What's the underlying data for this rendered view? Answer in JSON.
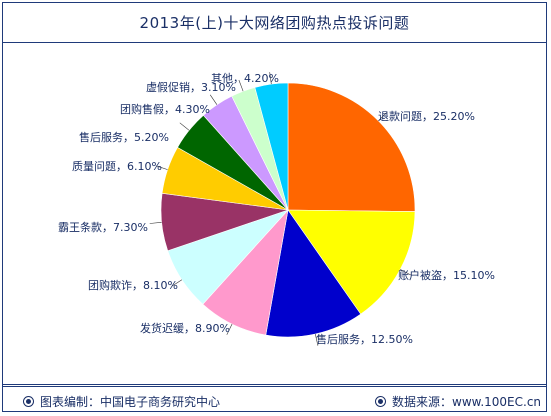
{
  "title": "2013年(上)十大网络团购热点投诉问题",
  "footer": {
    "source_left": "图表编制：中国电子商务研究中心",
    "source_right": "数据来源：www.100EC.cn"
  },
  "chart_data": {
    "type": "pie",
    "title": "2013年(上)十大网络团购热点投诉问题",
    "slices": [
      {
        "label": "退款问题，25.20%",
        "value": 25.2,
        "color": "#ff6600"
      },
      {
        "label": "账户被盗，15.10%",
        "value": 15.1,
        "color": "#ffff00"
      },
      {
        "label": "售后服务，12.50%",
        "value": 12.5,
        "color": "#0000cc"
      },
      {
        "label": "发货迟缓，8.90%",
        "value": 8.9,
        "color": "#ff99cc"
      },
      {
        "label": "团购欺诈，8.10%",
        "value": 8.1,
        "color": "#ccffff"
      },
      {
        "label": "霸王条款，7.30%",
        "value": 7.3,
        "color": "#993366"
      },
      {
        "label": "质量问题，6.10%",
        "value": 6.1,
        "color": "#ffcc00"
      },
      {
        "label": "售后服务，5.20%",
        "value": 5.2,
        "color": "#006600"
      },
      {
        "label": "团购售假，4.30%",
        "value": 4.3,
        "color": "#cc99ff"
      },
      {
        "label": "虚假促销，3.10%",
        "value": 3.1,
        "color": "#ccffcc"
      },
      {
        "label": "其他，4.20%",
        "value": 4.2,
        "color": "#00ccff"
      }
    ]
  }
}
